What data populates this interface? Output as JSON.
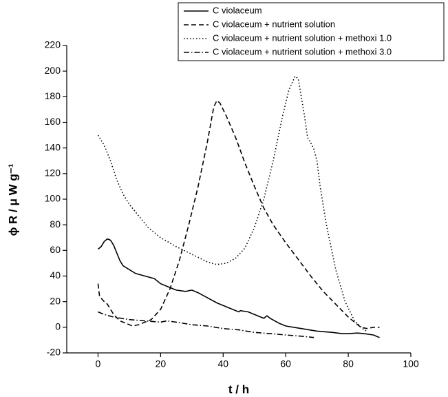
{
  "chart_data": {
    "type": "line",
    "xlabel": "t / h",
    "ylabel": "ϕ R / μ W g⁻¹",
    "xlim": [
      -10,
      100
    ],
    "xticks": [
      0,
      20,
      40,
      60,
      80,
      100
    ],
    "ylim": [
      -20,
      220
    ],
    "yticks": [
      -20,
      0,
      20,
      40,
      60,
      80,
      100,
      120,
      140,
      160,
      180,
      200,
      220
    ],
    "legend": "upper right",
    "series": [
      {
        "name": "C violaceum",
        "color": "#000000",
        "linestyle": "solid",
        "x": [
          0,
          1,
          2,
          3,
          4,
          5,
          6,
          7,
          8,
          10,
          12,
          15,
          18,
          20,
          22,
          25,
          28,
          30,
          32,
          35,
          38,
          40,
          42,
          45,
          45.5,
          48,
          50,
          53,
          54,
          55,
          58,
          60,
          65,
          70,
          75,
          78,
          80,
          83,
          85,
          88,
          90
        ],
        "values": [
          61,
          63,
          67,
          69,
          68,
          64,
          58,
          52,
          48,
          45,
          42,
          40,
          38,
          34,
          32,
          29,
          28,
          29,
          27,
          23,
          19,
          17,
          15,
          12,
          13,
          12,
          10,
          7,
          9,
          7,
          3,
          1,
          -1,
          -3,
          -4,
          -5,
          -5,
          -4.5,
          -5,
          -6,
          -8
        ]
      },
      {
        "name": "C violaceum + nutrient solution",
        "color": "#000000",
        "linestyle": "dashed",
        "x": [
          0,
          0.5,
          2,
          3,
          4,
          5,
          7,
          9,
          11,
          13,
          15,
          17,
          20,
          23,
          26,
          29,
          32,
          35,
          37,
          38,
          39,
          41,
          44,
          47,
          50,
          53,
          56,
          60,
          64,
          68,
          72,
          76,
          80,
          84,
          86,
          88,
          90
        ],
        "values": [
          34,
          24,
          20,
          18,
          14,
          10,
          5,
          3,
          1,
          2,
          4,
          6,
          14,
          30,
          52,
          80,
          110,
          145,
          172,
          177,
          175,
          165,
          148,
          128,
          110,
          93,
          80,
          66,
          53,
          40,
          28,
          18,
          8,
          0,
          -1,
          0,
          0
        ]
      },
      {
        "name": "C violaceum + nutrient solution + methoxi 1.0",
        "color": "#000000",
        "linestyle": "dotted",
        "x": [
          0,
          2,
          4,
          6,
          8,
          10,
          13,
          16,
          20,
          25,
          30,
          35,
          38,
          41,
          44,
          47,
          50,
          53,
          56,
          59,
          61,
          63,
          64,
          66,
          67,
          68,
          69,
          70,
          71,
          73,
          76,
          79,
          82,
          85,
          86
        ],
        "values": [
          150,
          142,
          130,
          115,
          104,
          96,
          87,
          78,
          70,
          63,
          57,
          51,
          49,
          50,
          54,
          62,
          78,
          100,
          130,
          165,
          185,
          196,
          194,
          165,
          148,
          144,
          139,
          130,
          110,
          80,
          45,
          20,
          5,
          -2,
          -3
        ]
      },
      {
        "name": "C violaceum + nutrient solution + methoxi 3.0",
        "color": "#000000",
        "linestyle": "dashdot",
        "x": [
          0,
          2,
          5,
          10,
          15,
          20,
          22,
          25,
          30,
          35,
          40,
          45,
          50,
          55,
          60,
          65,
          69
        ],
        "values": [
          12,
          10,
          8,
          6,
          5,
          4,
          5,
          4,
          2,
          1,
          -1,
          -2,
          -4,
          -5,
          -6,
          -7,
          -8
        ]
      }
    ]
  }
}
